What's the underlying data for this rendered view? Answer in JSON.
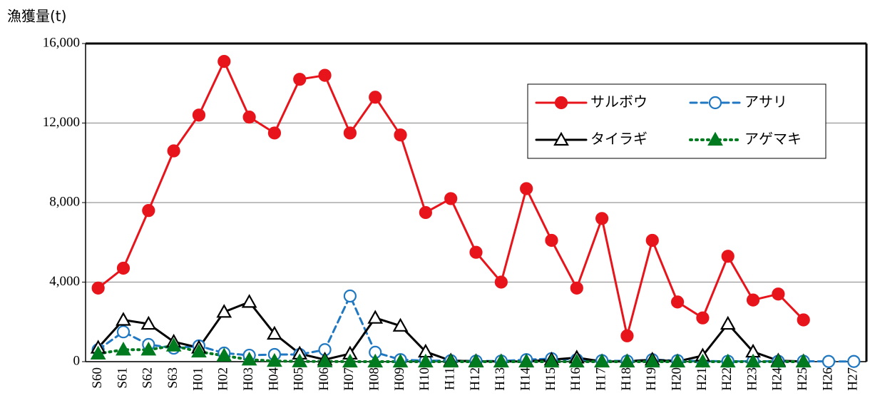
{
  "chart_data": {
    "type": "line",
    "y_axis_label": "漁獲量(t)",
    "categories": [
      "S60",
      "S61",
      "S62",
      "S63",
      "H01",
      "H02",
      "H03",
      "H04",
      "H05",
      "H06",
      "H07",
      "H08",
      "H09",
      "H10",
      "H11",
      "H12",
      "H13",
      "H14",
      "H15",
      "H16",
      "H17",
      "H18",
      "H19",
      "H20",
      "H21",
      "H22",
      "H23",
      "H24",
      "H25",
      "H26",
      "H27"
    ],
    "series": [
      {
        "name": "サルボウ",
        "color": "#e8141b",
        "line_style": "solid",
        "marker": "filled-circle",
        "values": [
          3700,
          4700,
          7600,
          10600,
          12400,
          15100,
          12300,
          11500,
          14200,
          14400,
          11500,
          13300,
          11400,
          7500,
          8200,
          5500,
          4000,
          8700,
          6100,
          3700,
          7200,
          1300,
          6100,
          3000,
          2200,
          5300,
          3100,
          3400,
          2100,
          null,
          null
        ]
      },
      {
        "name": "アサリ",
        "color": "#1f78c1",
        "line_style": "dashed",
        "marker": "open-circle",
        "values": [
          600,
          1500,
          860,
          680,
          790,
          430,
          320,
          360,
          360,
          600,
          3300,
          470,
          100,
          50,
          50,
          30,
          30,
          100,
          150,
          100,
          50,
          30,
          100,
          50,
          30,
          20,
          20,
          20,
          20,
          10,
          10
        ]
      },
      {
        "name": "タイラギ",
        "color": "#000000",
        "line_style": "solid",
        "marker": "open-triangle",
        "values": [
          700,
          2100,
          1900,
          1000,
          700,
          2500,
          3000,
          1400,
          400,
          100,
          400,
          2200,
          1800,
          500,
          50,
          20,
          10,
          10,
          100,
          200,
          10,
          10,
          100,
          10,
          300,
          1900,
          500,
          50,
          10,
          null,
          null
        ]
      },
      {
        "name": "アゲマキ",
        "color": "#007a1f",
        "line_style": "dotted",
        "marker": "filled-triangle",
        "values": [
          400,
          600,
          600,
          800,
          500,
          300,
          100,
          30,
          10,
          10,
          0,
          0,
          0,
          0,
          0,
          0,
          0,
          0,
          0,
          0,
          0,
          0,
          0,
          0,
          0,
          0,
          0,
          0,
          0,
          null,
          null
        ]
      }
    ],
    "ylim": [
      0,
      16000
    ],
    "yticks": [
      0,
      {
        "value": 4000,
        "label": "4,000"
      },
      {
        "value": 8000,
        "label": "8,000"
      },
      {
        "value": 12000,
        "label": "12,000"
      },
      {
        "value": 16000,
        "label": "16,000"
      }
    ],
    "grid": true,
    "legend": "upper right"
  }
}
